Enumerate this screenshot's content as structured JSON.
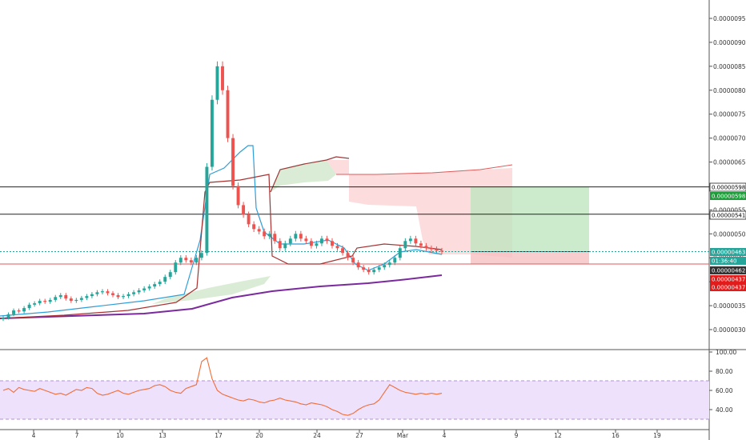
{
  "chart_data": [
    {
      "type": "candlestick",
      "title": "",
      "y_axis_ticks": [
        "0.00000300",
        "0.00000350",
        "0.00000400",
        "0.00000450",
        "0.00000500",
        "0.00000550",
        "0.00000600",
        "0.00000650",
        "0.00000700",
        "0.00000750",
        "0.00000800",
        "0.00000850",
        "0.00000900",
        "0.00000950"
      ],
      "x_axis_ticks": [
        "4",
        "7",
        "10",
        "13",
        "17",
        "20",
        "24",
        "27",
        "Mar",
        "4",
        "9",
        "12",
        "16",
        "19"
      ],
      "ylim": [
        2.8e-06,
        9.8e-06
      ],
      "price_tags": [
        {
          "label": "0.00000598",
          "style": "outline"
        },
        {
          "label": "0.00000598",
          "style": "green"
        },
        {
          "label": "0.00000541",
          "style": "outline"
        },
        {
          "label": "0.00000463",
          "style": "teal"
        },
        {
          "label": "01:36:40",
          "style": "teal"
        },
        {
          "label": "0.00000462",
          "style": "dark"
        },
        {
          "label": "0.00000437",
          "style": "red"
        },
        {
          "label": "0.00000437",
          "style": "red"
        }
      ],
      "series": [
        {
          "name": "",
          "values": [
            3.25e-06,
            3.32e-06,
            3.4e-06,
            3.38e-06,
            3.45e-06,
            3.52e-06,
            3.55e-06,
            3.6e-06,
            3.58e-06,
            3.62e-06,
            3.68e-06,
            3.72e-06,
            3.65e-06,
            3.6e-06,
            3.62e-06,
            3.66e-06,
            3.7e-06,
            3.74e-06,
            3.78e-06,
            3.8e-06,
            3.76e-06,
            3.72e-06,
            3.68e-06,
            3.7e-06,
            3.74e-06,
            3.78e-06,
            3.82e-06,
            3.86e-06,
            3.9e-06,
            3.95e-06,
            4e-06,
            4.1e-06,
            4.2e-06,
            4.4e-06,
            4.5e-06,
            4.45e-06,
            4.4e-06,
            4.5e-06,
            4.6e-06,
            6.4e-06,
            7.8e-06,
            8.5e-06,
            8e-06,
            7e-06,
            6e-06,
            5.6e-06,
            5.4e-06,
            5.2e-06,
            5.1e-06,
            5.05e-06,
            4.95e-06,
            5e-06,
            4.85e-06,
            4.7e-06,
            4.8e-06,
            4.9e-06,
            5e-06,
            4.9e-06,
            4.85e-06,
            4.75e-06,
            4.8e-06,
            4.9e-06,
            4.85e-06,
            4.75e-06,
            4.7e-06,
            4.6e-06,
            4.5e-06,
            4.4e-06,
            4.3e-06,
            4.25e-06,
            4.2e-06,
            4.25e-06,
            4.3e-06,
            4.35e-06,
            4.4e-06,
            4.5e-06,
            4.7e-06,
            4.85e-06,
            4.9e-06,
            4.8e-06,
            4.75e-06,
            4.7e-06,
            4.68e-06,
            4.65e-06,
            4.63e-06
          ]
        }
      ]
    },
    {
      "type": "line",
      "title": "",
      "y_axis_ticks": [
        "40.00",
        "60.00",
        "80.00",
        "100.00"
      ],
      "ylim": [
        30,
        100
      ],
      "series": [
        {
          "name": "",
          "values": [
            60,
            62,
            58,
            63,
            61,
            60,
            59,
            62,
            60,
            58,
            56,
            57,
            55,
            58,
            61,
            60,
            63,
            62,
            57,
            55,
            56,
            58,
            60,
            57,
            56,
            58,
            60,
            61,
            62,
            65,
            66,
            64,
            60,
            58,
            57,
            62,
            64,
            66,
            90,
            94,
            72,
            60,
            56,
            54,
            52,
            50,
            49,
            51,
            50,
            48,
            47,
            49,
            50,
            52,
            50,
            49,
            48,
            46,
            45,
            47,
            46,
            45,
            43,
            40,
            38,
            35,
            34,
            36,
            40,
            43,
            45,
            46,
            50,
            58,
            66,
            63,
            60,
            58,
            57,
            56,
            57,
            56,
            57,
            56,
            57
          ]
        }
      ],
      "bands": [
        {
          "from": 30,
          "to": 70
        }
      ]
    }
  ]
}
